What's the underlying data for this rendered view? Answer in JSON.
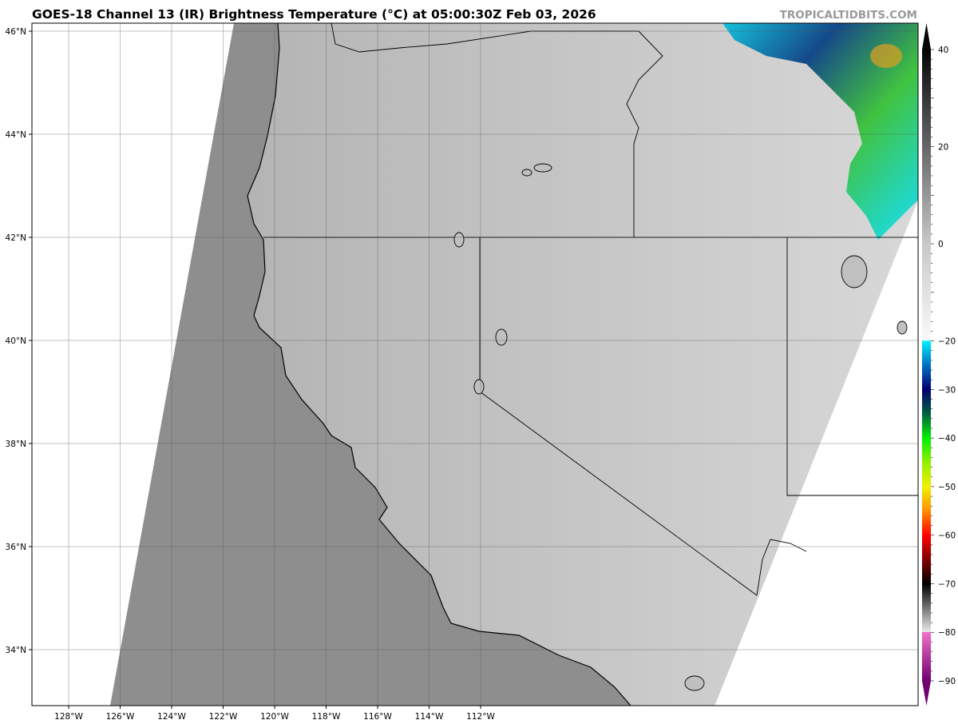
{
  "title": "GOES-18 Channel 13 (IR) Brightness Temperature (°C) at 05:00:30Z Feb 03, 2026",
  "watermark": "TROPICALTIDBITS.COM",
  "map": {
    "lon_labels": [
      "128°W",
      "126°W",
      "124°W",
      "122°W",
      "120°W",
      "118°W",
      "116°W",
      "114°W",
      "112°W"
    ],
    "lat_labels": [
      "46°N",
      "44°N",
      "42°N",
      "40°N",
      "38°N",
      "36°N",
      "34°N"
    ],
    "colors": {
      "ocean_swath": "#8e8e8e",
      "land_swath": "#bdbdbd",
      "outside": "#ffffff",
      "borders": "#000000",
      "grid": "#666666"
    }
  },
  "colorbar": {
    "ticks": [
      "40",
      "20",
      "0",
      "−20",
      "−30",
      "−40",
      "−50",
      "−60",
      "−70",
      "−80",
      "−90"
    ],
    "tick_values": [
      40,
      20,
      0,
      -20,
      -30,
      -40,
      -50,
      -60,
      -70,
      -80,
      -90
    ],
    "range": [
      -90,
      40
    ],
    "stops": [
      {
        "v": 40,
        "c": "#050505"
      },
      {
        "v": 0,
        "c": "#c8c8c8"
      },
      {
        "v": -19.9,
        "c": "#fafafa"
      },
      {
        "v": -20,
        "c": "#00f0ff"
      },
      {
        "v": -25,
        "c": "#0070c0"
      },
      {
        "v": -30,
        "c": "#000070"
      },
      {
        "v": -35,
        "c": "#006040"
      },
      {
        "v": -40,
        "c": "#00f000"
      },
      {
        "v": -45,
        "c": "#90f000"
      },
      {
        "v": -50,
        "c": "#f0f000"
      },
      {
        "v": -55,
        "c": "#ff9000"
      },
      {
        "v": -60,
        "c": "#ff0000"
      },
      {
        "v": -67,
        "c": "#500000"
      },
      {
        "v": -70,
        "c": "#000000"
      },
      {
        "v": -79.9,
        "c": "#e8e8e8"
      },
      {
        "v": -80,
        "c": "#f070c8"
      },
      {
        "v": -90,
        "c": "#700070"
      }
    ]
  }
}
